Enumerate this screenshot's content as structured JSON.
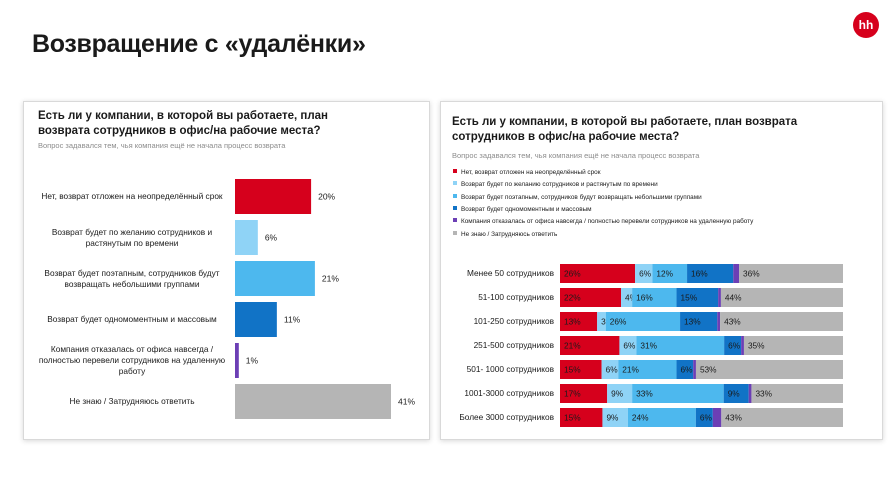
{
  "title": "Возвращение с «удалёнки»",
  "logo": "hh",
  "left_panel": {
    "question": "Есть ли у компании, в которой вы работаете, план возврата сотрудников в офис/на рабочие места?",
    "note": "Вопрос задавался тем, чья компания ещё не начала процесс возврата"
  },
  "right_panel": {
    "question": "Есть ли у компании, в которой вы работаете, план возврата сотрудников в офис/на рабочие места?",
    "note": "Вопрос задавался тем, чья компания ещё не начала процесс возврата"
  },
  "chart_data": [
    {
      "type": "bar",
      "orientation": "horizontal",
      "categories": [
        "Нет, возврат отложен на неопределённый срок",
        "Возврат будет по желанию сотрудников и растянутым по времени",
        "Возврат будет поэтапным, сотрудников будут возвращать небольшими группами",
        "Возврат будет одномоментным и массовым",
        "Компания отказалась от офиса навсегда / полностью перевели сотрудников на удаленную работу",
        "Не знаю / Затрудняюсь ответить"
      ],
      "values": [
        20,
        6,
        21,
        11,
        1,
        41
      ],
      "value_labels": [
        "20%",
        "6%",
        "21%",
        "11%",
        "1%",
        "41%"
      ],
      "colors": [
        "#d6001c",
        "#8fd3f6",
        "#4db8ee",
        "#1173c6",
        "#6c3fb5",
        "#b5b5b5"
      ],
      "xlim": [
        0,
        41
      ]
    },
    {
      "type": "bar",
      "orientation": "horizontal",
      "stacked": true,
      "legend_position": "top-left",
      "categories": [
        "Менее 50 сотрудников",
        "51-100 сотрудников",
        "101-250 сотрудников",
        "251-500 сотрудников",
        "501- 1000 сотрудников",
        "1001-3000 сотрудников",
        "Более 3000 сотрудников"
      ],
      "series": [
        {
          "name": "Нет, возврат отложен на неопределённый срок",
          "color": "#d6001c",
          "values": [
            26,
            22,
            13,
            21,
            15,
            17,
            15
          ],
          "labels": [
            "26%",
            "22%",
            "13%",
            "21%",
            "15%",
            "17%",
            "15%"
          ]
        },
        {
          "name": "Возврат будет по желанию сотрудников и растянутым по времени",
          "color": "#8fd3f6",
          "values": [
            6,
            4,
            3,
            6,
            6,
            9,
            9
          ],
          "labels": [
            "6%",
            "4%",
            "3%",
            "6%",
            "6%",
            "9%",
            "9%"
          ]
        },
        {
          "name": "Возврат будет поэтапным, сотрудников будут возвращать небольшими группами",
          "color": "#4db8ee",
          "values": [
            12,
            16,
            26,
            31,
            21,
            33,
            24
          ],
          "labels": [
            "12%",
            "16%",
            "26%",
            "31%",
            "21%",
            "33%",
            "24%"
          ]
        },
        {
          "name": "Возврат будет одномоментным и массовым",
          "color": "#1173c6",
          "values": [
            16,
            15,
            13,
            6,
            6,
            9,
            6
          ],
          "labels": [
            "16%",
            "15%",
            "13%",
            "6%",
            "6%",
            "9%",
            "6%"
          ]
        },
        {
          "name": "Компания отказалась от офиса навсегда / полностью перевели сотрудников на удаленную работу",
          "color": "#6c3fb5",
          "values": [
            2,
            1,
            1,
            1,
            1,
            1,
            3
          ],
          "labels": [
            "",
            "",
            "",
            "",
            "",
            "",
            ""
          ]
        },
        {
          "name": "Не знаю / Затрудняюсь ответить",
          "color": "#b5b5b5",
          "values": [
            36,
            44,
            43,
            35,
            53,
            33,
            43
          ],
          "labels": [
            "36%",
            "44%",
            "43%",
            "35%",
            "53%",
            "33%",
            "43%"
          ]
        }
      ],
      "xlim": [
        0,
        100
      ]
    }
  ]
}
